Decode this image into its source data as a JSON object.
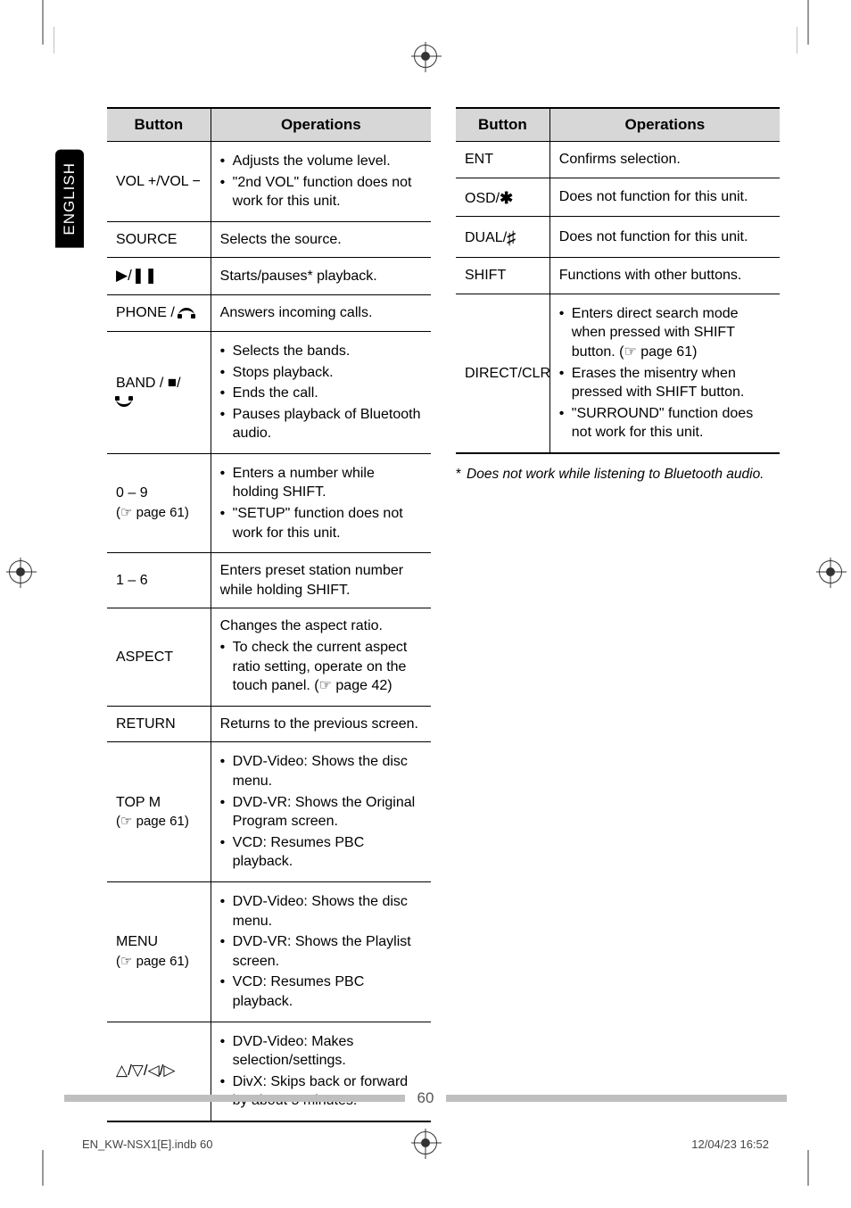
{
  "sideTab": "ENGLISH",
  "table1": {
    "headers": [
      "Button",
      "Operations"
    ],
    "rows": [
      {
        "btn": "VOL +/VOL −",
        "ops": [
          "Adjusts the volume level.",
          "\"2nd VOL\" function does not work for this unit."
        ]
      },
      {
        "btn": "SOURCE",
        "ops_plain": "Selects the source."
      },
      {
        "btn_icons": "play-pause",
        "ops_plain": "Starts/pauses* playback."
      },
      {
        "btn_phone": "PHONE",
        "ops_plain": "Answers incoming calls."
      },
      {
        "btn_band": "BAND",
        "ops": [
          "Selects the bands.",
          "Stops playback.",
          "Ends the call.",
          "Pauses playback of Bluetooth audio."
        ]
      },
      {
        "btn": "0 – 9",
        "ref": "page 61",
        "ops": [
          "Enters a number while holding SHIFT.",
          "\"SETUP\" function does not work for this unit."
        ]
      },
      {
        "btn": "1 – 6",
        "ops_plain": "Enters preset station number while holding SHIFT."
      },
      {
        "btn": "ASPECT",
        "ops_intro": "Changes the aspect ratio.",
        "ops": [
          "To check the current aspect ratio setting, operate on the touch panel. (☞ page 42)"
        ]
      },
      {
        "btn": "RETURN",
        "ops_plain": "Returns to the previous screen."
      },
      {
        "btn": "TOP M",
        "ref": "page 61",
        "ops": [
          "DVD-Video: Shows the disc menu.",
          "DVD-VR: Shows the Original Program screen.",
          "VCD: Resumes PBC playback."
        ]
      },
      {
        "btn": "MENU",
        "ref": "page 61",
        "ops": [
          "DVD-Video: Shows the disc menu.",
          "DVD-VR: Shows the Playlist screen.",
          "VCD: Resumes PBC playback."
        ]
      },
      {
        "btn_arrows": true,
        "ops": [
          "DVD-Video: Makes selection/settings.",
          "DivX: Skips back or forward by about 5 minutes."
        ]
      }
    ]
  },
  "table2": {
    "headers": [
      "Button",
      "Operations"
    ],
    "rows": [
      {
        "btn": "ENT",
        "ops_plain": "Confirms selection."
      },
      {
        "btn_osd": "OSD",
        "ops_plain": "Does not function for this unit."
      },
      {
        "btn_dual": "DUAL",
        "ops_plain": "Does not function for this unit."
      },
      {
        "btn": "SHIFT",
        "ops_plain": "Functions with other buttons."
      },
      {
        "btn": "DIRECT/CLR",
        "ops": [
          "Enters direct search mode when pressed with SHIFT button. (☞ page 61)",
          "Erases the misentry when pressed with SHIFT button.",
          "\"SURROUND\" function does not work for this unit."
        ]
      }
    ]
  },
  "footnote": "Does not work while listening to Bluetooth audio.",
  "pageNumber": "60",
  "imprintLeft": "EN_KW-NSX1[E].indb   60",
  "imprintRight": "12/04/23   16:52"
}
